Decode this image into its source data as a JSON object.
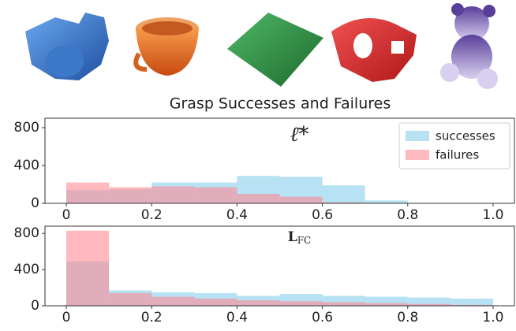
{
  "figure_title": "Grasp Successes and Failures",
  "chart_data": [
    {
      "type": "histogram",
      "annotation": "ℓ̄*",
      "bins": [
        0,
        0.1,
        0.2,
        0.3,
        0.4,
        0.5,
        0.6,
        0.7,
        0.8,
        0.9,
        1
      ],
      "series": [
        {
          "name": "successes",
          "color": "#87ceeb",
          "values": [
            140,
            150,
            220,
            220,
            290,
            280,
            190,
            30,
            0,
            0
          ]
        },
        {
          "name": "failures",
          "color": "#ff8a94",
          "values": [
            220,
            170,
            180,
            170,
            100,
            70,
            10,
            0,
            0,
            0
          ]
        }
      ],
      "xlim": [
        -0.05,
        1.05
      ],
      "ylim": [
        0,
        900
      ],
      "xticks": [
        0,
        0.2,
        0.4,
        0.6,
        0.8,
        {
          "value": 1,
          "label": "1.0"
        }
      ],
      "yticks": [
        0,
        400,
        800
      ],
      "legend": "upper right"
    },
    {
      "type": "histogram",
      "annotation": {
        "main": "L",
        "sub": "FC"
      },
      "bins": [
        0,
        0.1,
        0.2,
        0.3,
        0.4,
        0.5,
        0.6,
        0.7,
        0.8,
        0.9,
        1
      ],
      "series": [
        {
          "name": "successes",
          "color": "#87ceeb",
          "values": [
            490,
            170,
            150,
            140,
            110,
            130,
            110,
            100,
            90,
            80
          ]
        },
        {
          "name": "failures",
          "color": "#ff8a94",
          "values": [
            830,
            140,
            100,
            80,
            60,
            50,
            40,
            30,
            20,
            10
          ]
        }
      ],
      "xlim": [
        -0.05,
        1.05
      ],
      "ylim": [
        0,
        880
      ],
      "xticks": [
        0,
        0.2,
        0.4,
        0.6,
        0.8,
        {
          "value": 1,
          "label": "1.0"
        }
      ],
      "yticks": [
        0,
        400,
        800
      ]
    }
  ]
}
